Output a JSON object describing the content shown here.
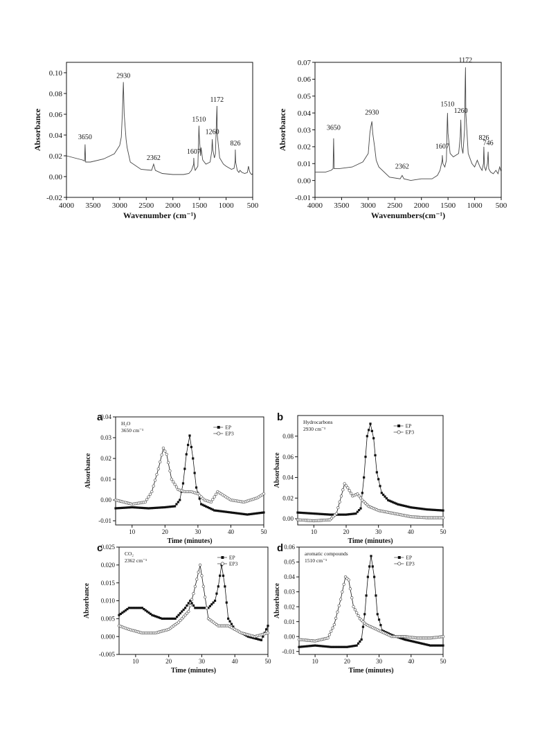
{
  "chart_data": [
    {
      "type": "line",
      "id": "ir_left",
      "title": "",
      "xlabel": "Wavenumber (cm⁻¹)",
      "ylabel": "Absorbance",
      "xlim": [
        4000,
        500
      ],
      "ylim": [
        -0.02,
        0.11
      ],
      "xticks": [
        4000,
        3500,
        3000,
        2500,
        2000,
        1500,
        1000,
        500
      ],
      "yticks": [
        -0.02,
        0.0,
        0.02,
        0.04,
        0.06,
        0.08,
        0.1
      ],
      "ytick_labels": [
        "-0.02",
        "0.00",
        "0.02",
        "0.04",
        "0.06",
        "0.08",
        "0.10"
      ],
      "peak_labels": [
        "3650",
        "2930",
        "2362",
        "1607",
        "1510",
        "1260",
        "1172",
        "826"
      ],
      "series": [
        {
          "x": [
            4000,
            3700,
            3660,
            3650,
            3640,
            3550,
            3300,
            3100,
            3000,
            2970,
            2950,
            2930,
            2915,
            2880,
            2860,
            2800,
            2600,
            2400,
            2362,
            2330,
            2200,
            2000,
            1800,
            1700,
            1650,
            1610,
            1607,
            1600,
            1580,
            1530,
            1515,
            1510,
            1505,
            1480,
            1470,
            1440,
            1380,
            1300,
            1270,
            1260,
            1250,
            1220,
            1200,
            1180,
            1172,
            1165,
            1120,
            1050,
            1000,
            900,
            850,
            830,
            826,
            820,
            790,
            760,
            740,
            700,
            650,
            600,
            580,
            560,
            540,
            520,
            500
          ],
          "y": [
            0.02,
            0.016,
            0.015,
            0.031,
            0.014,
            0.014,
            0.017,
            0.022,
            0.03,
            0.038,
            0.06,
            0.091,
            0.06,
            0.036,
            0.028,
            0.014,
            0.007,
            0.006,
            0.012,
            0.006,
            0.003,
            0.002,
            0.002,
            0.003,
            0.006,
            0.012,
            0.018,
            0.01,
            0.006,
            0.01,
            0.04,
            0.049,
            0.04,
            0.02,
            0.028,
            0.016,
            0.012,
            0.014,
            0.024,
            0.036,
            0.026,
            0.018,
            0.022,
            0.055,
            0.068,
            0.04,
            0.018,
            0.012,
            0.01,
            0.007,
            0.008,
            0.015,
            0.026,
            0.014,
            0.006,
            0.004,
            0.006,
            0.004,
            0.003,
            0.004,
            0.01,
            0.005,
            0.003,
            0.002,
            0.003
          ]
        }
      ]
    },
    {
      "type": "line",
      "id": "ir_right",
      "title": "",
      "xlabel": "Wavenumbers(cm⁻¹)",
      "ylabel": "Absorbance",
      "xlim": [
        4000,
        500
      ],
      "ylim": [
        -0.01,
        0.07
      ],
      "xticks": [
        4000,
        3500,
        3000,
        2500,
        2000,
        1500,
        1000,
        500
      ],
      "yticks": [
        -0.01,
        0.0,
        0.01,
        0.02,
        0.03,
        0.04,
        0.05,
        0.06,
        0.07
      ],
      "ytick_labels": [
        "-0.01",
        "0.00",
        "0.01",
        "0.02",
        "0.03",
        "0.04",
        "0.05",
        "0.06",
        "0.07"
      ],
      "peak_labels": [
        "3650",
        "2930",
        "2362",
        "1607",
        "1510",
        "1260",
        "1172",
        "826",
        "746"
      ],
      "series": [
        {
          "x": [
            4000,
            3800,
            3700,
            3660,
            3650,
            3640,
            3550,
            3300,
            3100,
            3000,
            2970,
            2950,
            2930,
            2915,
            2880,
            2850,
            2800,
            2600,
            2400,
            2362,
            2330,
            2200,
            2000,
            1800,
            1700,
            1650,
            1610,
            1607,
            1595,
            1560,
            1530,
            1515,
            1510,
            1500,
            1460,
            1400,
            1300,
            1270,
            1260,
            1245,
            1220,
            1190,
            1176,
            1172,
            1165,
            1120,
            1050,
            1000,
            950,
            900,
            860,
            835,
            826,
            815,
            790,
            760,
            746,
            735,
            700,
            650,
            600,
            560,
            530,
            500
          ],
          "y": [
            0.005,
            0.005,
            0.006,
            0.007,
            0.025,
            0.007,
            0.007,
            0.008,
            0.011,
            0.016,
            0.028,
            0.032,
            0.035,
            0.028,
            0.02,
            0.012,
            0.008,
            0.002,
            0.001,
            0.003,
            0.001,
            0.0,
            0.001,
            0.001,
            0.003,
            0.006,
            0.012,
            0.015,
            0.01,
            0.008,
            0.012,
            0.035,
            0.04,
            0.028,
            0.016,
            0.014,
            0.016,
            0.026,
            0.036,
            0.02,
            0.016,
            0.03,
            0.06,
            0.067,
            0.04,
            0.016,
            0.01,
            0.008,
            0.012,
            0.008,
            0.006,
            0.01,
            0.02,
            0.008,
            0.006,
            0.01,
            0.017,
            0.007,
            0.005,
            0.004,
            0.006,
            0.004,
            0.008,
            0.005
          ]
        }
      ]
    },
    {
      "type": "scatter",
      "id": "panel_a",
      "panel_label": "a",
      "annotation": [
        "H₂O",
        "3650 cm⁻¹"
      ],
      "xlabel": "Time (minutes)",
      "ylabel": "Absorbance",
      "xlim": [
        5,
        50
      ],
      "ylim": [
        -0.012,
        0.04
      ],
      "xticks": [
        10,
        20,
        30,
        40,
        50
      ],
      "yticks": [
        -0.01,
        0.0,
        0.01,
        0.02,
        0.03,
        0.04
      ],
      "ytick_labels": [
        "-0.01",
        "0.00",
        "0.01",
        "0.02",
        "0.03",
        "0.04"
      ],
      "legend": "top-right",
      "series": [
        {
          "name": "EP",
          "marker": "filled-square",
          "x": [
            5,
            10,
            15,
            20,
            23,
            24.5,
            25.5,
            26.5,
            27.5,
            28.5,
            29.5,
            31,
            35,
            40,
            45,
            50
          ],
          "y": [
            -0.004,
            -0.0035,
            -0.004,
            -0.0035,
            -0.003,
            0.0,
            0.008,
            0.022,
            0.031,
            0.02,
            0.006,
            -0.002,
            -0.005,
            -0.006,
            -0.007,
            -0.006
          ]
        },
        {
          "name": "EP3",
          "marker": "open-circle",
          "x": [
            5,
            10,
            14,
            16,
            18,
            19.5,
            20.5,
            22,
            24,
            26,
            28,
            30,
            32,
            34,
            36,
            38,
            40,
            44,
            48,
            50
          ],
          "y": [
            0.0,
            -0.002,
            -0.001,
            0.004,
            0.015,
            0.025,
            0.022,
            0.01,
            0.005,
            0.004,
            0.004,
            0.003,
            0.0,
            -0.001,
            0.004,
            0.002,
            0.0,
            -0.001,
            0.001,
            0.003
          ]
        }
      ]
    },
    {
      "type": "scatter",
      "id": "panel_b",
      "panel_label": "b",
      "annotation": [
        "Hydrocarbons",
        "2930 cm⁻¹"
      ],
      "xlabel": "Time (minutes)",
      "ylabel": "Absorbance",
      "xlim": [
        5,
        50
      ],
      "ylim": [
        -0.006,
        0.1
      ],
      "xticks": [
        10,
        20,
        30,
        40,
        50
      ],
      "yticks": [
        0.0,
        0.02,
        0.04,
        0.06,
        0.08
      ],
      "ytick_labels": [
        "0.00",
        "0.02",
        "0.04",
        "0.06",
        "0.08"
      ],
      "legend": "top-right",
      "series": [
        {
          "name": "EP",
          "marker": "filled-square",
          "x": [
            5,
            10,
            15,
            20,
            23,
            24.5,
            25.5,
            26.5,
            27.5,
            28.5,
            29.5,
            31,
            33,
            36,
            40,
            45,
            50
          ],
          "y": [
            0.006,
            0.005,
            0.004,
            0.004,
            0.005,
            0.01,
            0.04,
            0.08,
            0.092,
            0.078,
            0.045,
            0.025,
            0.018,
            0.014,
            0.011,
            0.009,
            0.008
          ]
        },
        {
          "name": "EP3",
          "marker": "open-circle",
          "x": [
            5,
            10,
            15,
            17,
            18.5,
            19.5,
            20.5,
            22,
            23.5,
            25,
            27,
            30,
            35,
            40,
            45,
            50
          ],
          "y": [
            -0.001,
            -0.002,
            -0.001,
            0.005,
            0.022,
            0.034,
            0.03,
            0.022,
            0.024,
            0.018,
            0.012,
            0.008,
            0.005,
            0.002,
            0.001,
            0.001
          ]
        }
      ]
    },
    {
      "type": "scatter",
      "id": "panel_c",
      "panel_label": "c",
      "annotation": [
        "CO₂",
        "2362 cm⁻¹"
      ],
      "xlabel": "Time (minutes)",
      "ylabel": "Absorbance",
      "xlim": [
        5,
        50
      ],
      "ylim": [
        -0.005,
        0.025
      ],
      "xticks": [
        10,
        20,
        30,
        40,
        50
      ],
      "yticks": [
        -0.005,
        0.0,
        0.005,
        0.01,
        0.015,
        0.02,
        0.025
      ],
      "ytick_labels": [
        "-0.005",
        "0.000",
        "0.005",
        "0.010",
        "0.015",
        "0.020",
        "0.025"
      ],
      "legend": "top-right",
      "series": [
        {
          "name": "EP",
          "marker": "filled-square",
          "x": [
            5,
            8,
            12,
            15,
            18,
            22,
            25,
            26.5,
            28,
            30,
            32,
            34,
            35,
            36,
            37,
            38,
            40,
            44,
            48,
            50
          ],
          "y": [
            0.006,
            0.008,
            0.008,
            0.006,
            0.005,
            0.005,
            0.008,
            0.01,
            0.008,
            0.008,
            0.008,
            0.01,
            0.014,
            0.02,
            0.014,
            0.005,
            0.002,
            0.0,
            -0.001,
            0.003
          ]
        },
        {
          "name": "EP3",
          "marker": "open-circle",
          "x": [
            5,
            8,
            12,
            16,
            20,
            23,
            26,
            27.5,
            28.5,
            29.5,
            30.5,
            32,
            35,
            38,
            42,
            46,
            50
          ],
          "y": [
            0.003,
            0.002,
            0.001,
            0.001,
            0.002,
            0.004,
            0.007,
            0.012,
            0.016,
            0.02,
            0.014,
            0.005,
            0.003,
            0.003,
            0.001,
            0.0,
            0.001
          ]
        }
      ]
    },
    {
      "type": "scatter",
      "id": "panel_d",
      "panel_label": "d",
      "annotation": [
        "aromatic compounds",
        "1510 cm⁻¹"
      ],
      "xlabel": "Time (minutes)",
      "ylabel": "Absorbance",
      "xlim": [
        5,
        50
      ],
      "ylim": [
        -0.012,
        0.06
      ],
      "xticks": [
        10,
        20,
        30,
        40,
        50
      ],
      "yticks": [
        -0.01,
        0.0,
        0.01,
        0.02,
        0.03,
        0.04,
        0.05,
        0.06
      ],
      "ytick_labels": [
        "-0.01",
        "0.00",
        "0.01",
        "0.02",
        "0.03",
        "0.04",
        "0.05",
        "0.06"
      ],
      "legend": "top-right",
      "series": [
        {
          "name": "EP",
          "marker": "filled-square",
          "x": [
            5,
            10,
            15,
            20,
            23,
            24.5,
            25.5,
            26.5,
            27.5,
            28.5,
            29.5,
            31,
            34,
            38,
            42,
            46,
            50
          ],
          "y": [
            -0.007,
            -0.006,
            -0.007,
            -0.007,
            -0.006,
            -0.002,
            0.015,
            0.04,
            0.054,
            0.04,
            0.015,
            0.004,
            0.001,
            -0.002,
            -0.004,
            -0.006,
            -0.006
          ]
        },
        {
          "name": "EP3",
          "marker": "open-circle",
          "x": [
            5,
            10,
            14,
            16,
            18,
            19.5,
            20.5,
            22,
            24,
            26,
            28,
            30,
            34,
            38,
            42,
            46,
            50
          ],
          "y": [
            -0.002,
            -0.003,
            -0.001,
            0.008,
            0.025,
            0.04,
            0.038,
            0.02,
            0.012,
            0.008,
            0.006,
            0.004,
            0.0,
            0.0,
            -0.001,
            -0.001,
            0.0
          ]
        }
      ]
    }
  ]
}
